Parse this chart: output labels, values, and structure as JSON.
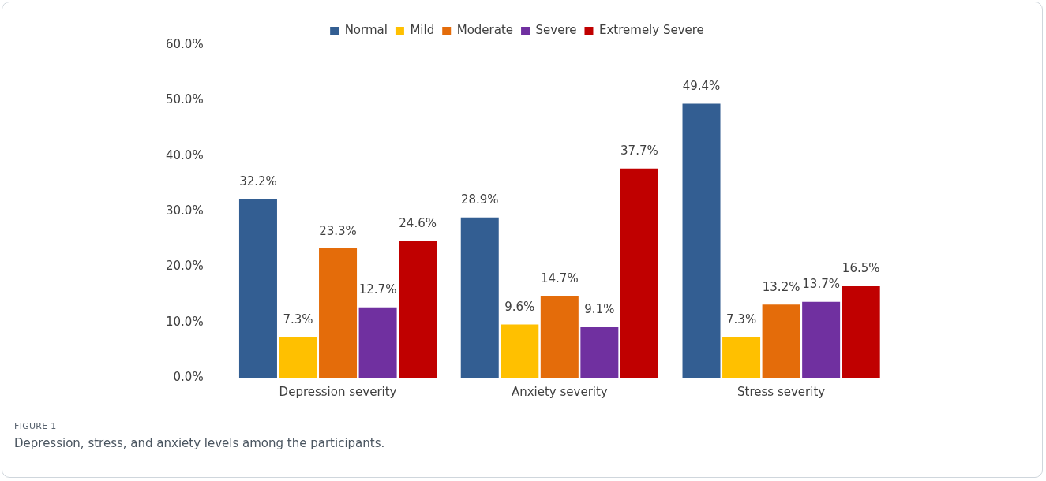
{
  "chart_data": {
    "type": "bar",
    "categories": [
      "Depression severity",
      "Anxiety severity",
      "Stress severity"
    ],
    "series": [
      {
        "name": "Normal",
        "color": "#335e92",
        "values": [
          32.2,
          28.9,
          49.4
        ],
        "value_labels": [
          "32.2%",
          "28.9%",
          "49.4%"
        ]
      },
      {
        "name": "Mild",
        "color": "#ffc000",
        "values": [
          7.3,
          9.6,
          7.3
        ],
        "value_labels": [
          "7.3%",
          "9.6%",
          "7.3%"
        ]
      },
      {
        "name": "Moderate",
        "color": "#e46c0a",
        "values": [
          23.3,
          14.7,
          13.2
        ],
        "value_labels": [
          "23.3%",
          "14.7%",
          "13.2%"
        ]
      },
      {
        "name": "Severe",
        "color": "#7030a0",
        "values": [
          12.7,
          9.1,
          13.7
        ],
        "value_labels": [
          "12.7%",
          "9.1%",
          "13.7%"
        ]
      },
      {
        "name": "Extremely Severe",
        "color": "#c00000",
        "values": [
          24.6,
          37.7,
          16.5
        ],
        "value_labels": [
          "24.6%",
          "37.7%",
          "16.5%"
        ]
      }
    ],
    "ylim": [
      0,
      60
    ],
    "yticks": [
      {
        "value": 0,
        "label": "0.0%"
      },
      {
        "value": 10,
        "label": "10.0%"
      },
      {
        "value": 20,
        "label": "20.0%"
      },
      {
        "value": 30,
        "label": "30.0%"
      },
      {
        "value": 40,
        "label": "40.0%"
      },
      {
        "value": 50,
        "label": "50.0%"
      },
      {
        "value": 60,
        "label": "60.0%"
      }
    ],
    "grid": false,
    "legend": "top",
    "annotations": [
      "FIGURE 1",
      "Depression, stress, and anxiety levels among the participants."
    ]
  }
}
